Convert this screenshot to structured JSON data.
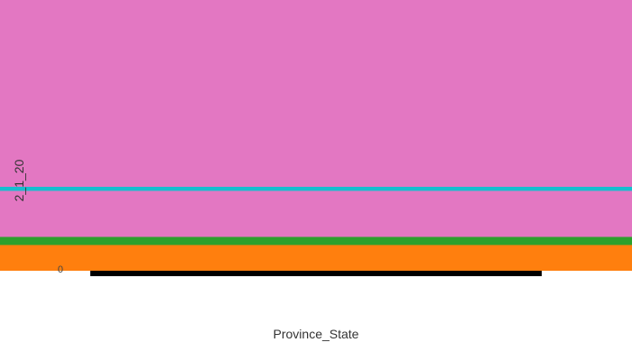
{
  "chart_data": {
    "type": "area",
    "xlabel": "Province_State",
    "ylabel": "2_1_20",
    "ylim": [
      0,
      1
    ],
    "y_tick_labels": [
      "0"
    ],
    "bands": [
      {
        "from": 0.0,
        "to": 0.095,
        "color": "#ff7f0e"
      },
      {
        "from": 0.095,
        "to": 0.125,
        "color": "#2ca02c"
      },
      {
        "from": 0.125,
        "to": 0.295,
        "color": "#e377c2"
      },
      {
        "from": 0.295,
        "to": 0.31,
        "color": "#17becf"
      },
      {
        "from": 0.31,
        "to": 1.0,
        "color": "#e377c2"
      }
    ],
    "grid": false,
    "legend": "none"
  }
}
